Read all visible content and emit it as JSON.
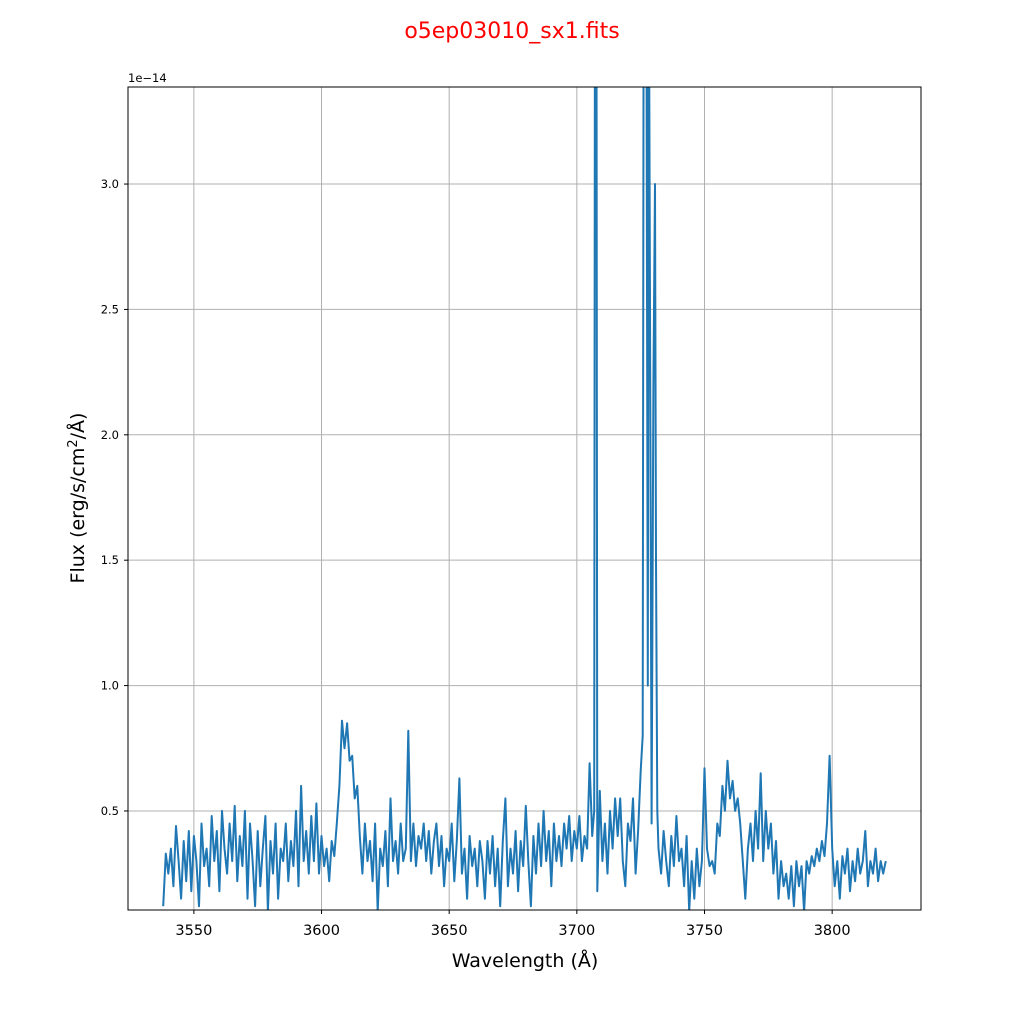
{
  "chart_data": {
    "type": "line",
    "title": "o5ep03010_sx1.fits",
    "title_color": "#ff0000",
    "xlabel": "Wavelength (Å)",
    "ylabel_prefix": "Flux (erg/s/cm",
    "ylabel_sup": "2",
    "ylabel_suffix": "/Å)",
    "y_offset_label": "1e−14",
    "y_scale": 1e-14,
    "xlim": [
      3524.2,
      3834.8
    ],
    "ylim": [
      0.105,
      3.387
    ],
    "xticks": [
      3550,
      3600,
      3650,
      3700,
      3750,
      3800
    ],
    "xtick_labels": [
      "3550",
      "3600",
      "3650",
      "3700",
      "3750",
      "3800"
    ],
    "yticks": [
      0.5,
      1.0,
      1.5,
      2.0,
      2.5,
      3.0
    ],
    "ytick_labels": [
      "0.5",
      "1.0",
      "1.5",
      "2.0",
      "2.5",
      "3.0"
    ],
    "grid": true,
    "series": [
      {
        "name": "flux",
        "color": "#1f77b4",
        "points": [
          [
            3538,
            0.12
          ],
          [
            3539,
            0.33
          ],
          [
            3540,
            0.25
          ],
          [
            3541,
            0.35
          ],
          [
            3542,
            0.2
          ],
          [
            3543,
            0.44
          ],
          [
            3544,
            0.3
          ],
          [
            3545,
            0.15
          ],
          [
            3546,
            0.38
          ],
          [
            3547,
            0.22
          ],
          [
            3548,
            0.42
          ],
          [
            3549,
            0.18
          ],
          [
            3550,
            0.4
          ],
          [
            3551,
            0.3
          ],
          [
            3552,
            0.12
          ],
          [
            3553,
            0.45
          ],
          [
            3554,
            0.28
          ],
          [
            3555,
            0.35
          ],
          [
            3556,
            0.2
          ],
          [
            3557,
            0.48
          ],
          [
            3558,
            0.3
          ],
          [
            3559,
            0.42
          ],
          [
            3560,
            0.18
          ],
          [
            3561,
            0.5
          ],
          [
            3562,
            0.35
          ],
          [
            3563,
            0.25
          ],
          [
            3564,
            0.45
          ],
          [
            3565,
            0.3
          ],
          [
            3566,
            0.52
          ],
          [
            3567,
            0.22
          ],
          [
            3568,
            0.4
          ],
          [
            3569,
            0.28
          ],
          [
            3570,
            0.5
          ],
          [
            3571,
            0.15
          ],
          [
            3572,
            0.45
          ],
          [
            3573,
            0.3
          ],
          [
            3574,
            0.12
          ],
          [
            3575,
            0.42
          ],
          [
            3576,
            0.2
          ],
          [
            3577,
            0.35
          ],
          [
            3578,
            0.48
          ],
          [
            3579,
            0.1
          ],
          [
            3580,
            0.38
          ],
          [
            3581,
            0.25
          ],
          [
            3582,
            0.45
          ],
          [
            3583,
            0.15
          ],
          [
            3584,
            0.35
          ],
          [
            3585,
            0.3
          ],
          [
            3586,
            0.45
          ],
          [
            3587,
            0.22
          ],
          [
            3588,
            0.38
          ],
          [
            3589,
            0.28
          ],
          [
            3590,
            0.5
          ],
          [
            3591,
            0.2
          ],
          [
            3592,
            0.6
          ],
          [
            3593,
            0.3
          ],
          [
            3594,
            0.42
          ],
          [
            3595,
            0.25
          ],
          [
            3596,
            0.48
          ],
          [
            3597,
            0.3
          ],
          [
            3598,
            0.53
          ],
          [
            3599,
            0.25
          ],
          [
            3600,
            0.4
          ],
          [
            3601,
            0.28
          ],
          [
            3602,
            0.35
          ],
          [
            3603,
            0.22
          ],
          [
            3604,
            0.38
          ],
          [
            3605,
            0.32
          ],
          [
            3606,
            0.45
          ],
          [
            3607,
            0.6
          ],
          [
            3608,
            0.86
          ],
          [
            3609,
            0.75
          ],
          [
            3610,
            0.85
          ],
          [
            3611,
            0.7
          ],
          [
            3612,
            0.72
          ],
          [
            3613,
            0.55
          ],
          [
            3614,
            0.6
          ],
          [
            3615,
            0.4
          ],
          [
            3616,
            0.25
          ],
          [
            3617,
            0.45
          ],
          [
            3618,
            0.3
          ],
          [
            3619,
            0.38
          ],
          [
            3620,
            0.22
          ],
          [
            3621,
            0.45
          ],
          [
            3622,
            0.1
          ],
          [
            3623,
            0.35
          ],
          [
            3624,
            0.28
          ],
          [
            3625,
            0.42
          ],
          [
            3626,
            0.2
          ],
          [
            3627,
            0.55
          ],
          [
            3628,
            0.3
          ],
          [
            3629,
            0.38
          ],
          [
            3630,
            0.25
          ],
          [
            3631,
            0.45
          ],
          [
            3632,
            0.3
          ],
          [
            3633,
            0.35
          ],
          [
            3634,
            0.82
          ],
          [
            3635,
            0.3
          ],
          [
            3636,
            0.45
          ],
          [
            3637,
            0.28
          ],
          [
            3638,
            0.4
          ],
          [
            3639,
            0.35
          ],
          [
            3640,
            0.45
          ],
          [
            3641,
            0.3
          ],
          [
            3642,
            0.42
          ],
          [
            3643,
            0.25
          ],
          [
            3644,
            0.38
          ],
          [
            3645,
            0.45
          ],
          [
            3646,
            0.28
          ],
          [
            3647,
            0.4
          ],
          [
            3648,
            0.2
          ],
          [
            3649,
            0.35
          ],
          [
            3650,
            0.3
          ],
          [
            3651,
            0.45
          ],
          [
            3652,
            0.22
          ],
          [
            3653,
            0.38
          ],
          [
            3654,
            0.63
          ],
          [
            3655,
            0.25
          ],
          [
            3656,
            0.35
          ],
          [
            3657,
            0.15
          ],
          [
            3658,
            0.4
          ],
          [
            3659,
            0.28
          ],
          [
            3660,
            0.35
          ],
          [
            3661,
            0.2
          ],
          [
            3662,
            0.38
          ],
          [
            3663,
            0.3
          ],
          [
            3664,
            0.15
          ],
          [
            3665,
            0.38
          ],
          [
            3666,
            0.25
          ],
          [
            3667,
            0.4
          ],
          [
            3668,
            0.2
          ],
          [
            3669,
            0.35
          ],
          [
            3670,
            0.12
          ],
          [
            3671,
            0.38
          ],
          [
            3672,
            0.55
          ],
          [
            3673,
            0.2
          ],
          [
            3674,
            0.35
          ],
          [
            3675,
            0.25
          ],
          [
            3676,
            0.42
          ],
          [
            3677,
            0.18
          ],
          [
            3678,
            0.38
          ],
          [
            3679,
            0.28
          ],
          [
            3680,
            0.52
          ],
          [
            3681,
            0.3
          ],
          [
            3682,
            0.12
          ],
          [
            3683,
            0.4
          ],
          [
            3684,
            0.25
          ],
          [
            3685,
            0.45
          ],
          [
            3686,
            0.28
          ],
          [
            3687,
            0.5
          ],
          [
            3688,
            0.3
          ],
          [
            3689,
            0.42
          ],
          [
            3690,
            0.2
          ],
          [
            3691,
            0.45
          ],
          [
            3692,
            0.3
          ],
          [
            3693,
            0.4
          ],
          [
            3694,
            0.28
          ],
          [
            3695,
            0.45
          ],
          [
            3696,
            0.35
          ],
          [
            3697,
            0.48
          ],
          [
            3698,
            0.3
          ],
          [
            3699,
            0.42
          ],
          [
            3700,
            0.35
          ],
          [
            3701,
            0.48
          ],
          [
            3702,
            0.3
          ],
          [
            3703,
            0.4
          ],
          [
            3704,
            0.35
          ],
          [
            3705,
            0.69
          ],
          [
            3706,
            0.4
          ],
          [
            3706.8,
            0.5
          ],
          [
            3707.2,
            5.0
          ],
          [
            3707.6,
            5.0
          ],
          [
            3708,
            0.18
          ],
          [
            3709,
            0.58
          ],
          [
            3710,
            0.3
          ],
          [
            3711,
            0.45
          ],
          [
            3712,
            0.25
          ],
          [
            3713,
            0.5
          ],
          [
            3714,
            0.35
          ],
          [
            3715,
            0.55
          ],
          [
            3716,
            0.4
          ],
          [
            3717,
            0.55
          ],
          [
            3718,
            0.3
          ],
          [
            3719,
            0.2
          ],
          [
            3720,
            0.45
          ],
          [
            3721,
            0.38
          ],
          [
            3722,
            0.55
          ],
          [
            3723,
            0.25
          ],
          [
            3724,
            0.42
          ],
          [
            3725,
            0.66
          ],
          [
            3725.8,
            0.8
          ],
          [
            3726.3,
            5.0
          ],
          [
            3727,
            5.0
          ],
          [
            3727.8,
            1.0
          ],
          [
            3728.2,
            4.0
          ],
          [
            3728.8,
            2.0
          ],
          [
            3729.3,
            0.45
          ],
          [
            3730,
            2.2
          ],
          [
            3730.6,
            3.0
          ],
          [
            3731,
            1.5
          ],
          [
            3731.5,
            0.5
          ],
          [
            3732,
            0.35
          ],
          [
            3733,
            0.25
          ],
          [
            3734,
            0.42
          ],
          [
            3735,
            0.3
          ],
          [
            3736,
            0.2
          ],
          [
            3737,
            0.4
          ],
          [
            3738,
            0.28
          ],
          [
            3739,
            0.48
          ],
          [
            3740,
            0.3
          ],
          [
            3741,
            0.35
          ],
          [
            3742,
            0.2
          ],
          [
            3743,
            0.4
          ],
          [
            3744,
            0.1
          ],
          [
            3745,
            0.3
          ],
          [
            3746,
            0.15
          ],
          [
            3747,
            0.35
          ],
          [
            3748,
            0.2
          ],
          [
            3749,
            0.3
          ],
          [
            3750,
            0.67
          ],
          [
            3751,
            0.35
          ],
          [
            3752,
            0.28
          ],
          [
            3753,
            0.3
          ],
          [
            3754,
            0.25
          ],
          [
            3755,
            0.45
          ],
          [
            3756,
            0.4
          ],
          [
            3757,
            0.6
          ],
          [
            3758,
            0.5
          ],
          [
            3759,
            0.7
          ],
          [
            3760,
            0.55
          ],
          [
            3761,
            0.62
          ],
          [
            3762,
            0.5
          ],
          [
            3763,
            0.55
          ],
          [
            3764,
            0.45
          ],
          [
            3765,
            0.3
          ],
          [
            3766,
            0.15
          ],
          [
            3767,
            0.35
          ],
          [
            3768,
            0.45
          ],
          [
            3769,
            0.3
          ],
          [
            3770,
            0.5
          ],
          [
            3771,
            0.35
          ],
          [
            3772,
            0.65
          ],
          [
            3773,
            0.3
          ],
          [
            3774,
            0.5
          ],
          [
            3775,
            0.35
          ],
          [
            3776,
            0.45
          ],
          [
            3777,
            0.25
          ],
          [
            3778,
            0.38
          ],
          [
            3779,
            0.15
          ],
          [
            3780,
            0.3
          ],
          [
            3781,
            0.2
          ],
          [
            3782,
            0.25
          ],
          [
            3783,
            0.15
          ],
          [
            3784,
            0.28
          ],
          [
            3785,
            0.12
          ],
          [
            3786,
            0.3
          ],
          [
            3787,
            0.2
          ],
          [
            3788,
            0.28
          ],
          [
            3789,
            0.1
          ],
          [
            3790,
            0.3
          ],
          [
            3791,
            0.25
          ],
          [
            3792,
            0.32
          ],
          [
            3793,
            0.28
          ],
          [
            3794,
            0.35
          ],
          [
            3795,
            0.3
          ],
          [
            3796,
            0.38
          ],
          [
            3797,
            0.32
          ],
          [
            3798,
            0.45
          ],
          [
            3799,
            0.72
          ],
          [
            3800,
            0.35
          ],
          [
            3801,
            0.2
          ],
          [
            3802,
            0.3
          ],
          [
            3803,
            0.15
          ],
          [
            3804,
            0.32
          ],
          [
            3805,
            0.25
          ],
          [
            3806,
            0.35
          ],
          [
            3807,
            0.18
          ],
          [
            3808,
            0.3
          ],
          [
            3809,
            0.22
          ],
          [
            3810,
            0.35
          ],
          [
            3811,
            0.25
          ],
          [
            3812,
            0.3
          ],
          [
            3813,
            0.42
          ],
          [
            3814,
            0.2
          ],
          [
            3815,
            0.3
          ],
          [
            3816,
            0.25
          ],
          [
            3817,
            0.35
          ],
          [
            3818,
            0.22
          ],
          [
            3819,
            0.3
          ],
          [
            3820,
            0.25
          ],
          [
            3821,
            0.3
          ]
        ]
      }
    ]
  }
}
